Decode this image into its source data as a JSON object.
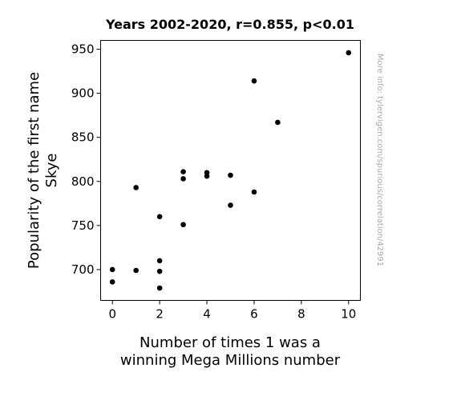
{
  "chart_data": {
    "type": "scatter",
    "title": "Years 2002-2020, r=0.855, p<0.01",
    "xlabel": [
      "Number of times 1 was a",
      "winning Mega Millions number"
    ],
    "ylabel": [
      "Popularity of the first name",
      "Skye"
    ],
    "xlim": [
      -0.5,
      10.5
    ],
    "ylim": [
      665,
      960
    ],
    "xticks": [
      0,
      2,
      4,
      6,
      8,
      10
    ],
    "yticks": [
      700,
      750,
      800,
      850,
      900,
      950
    ],
    "grid": false,
    "point_color": "#000000",
    "points": [
      {
        "x": 0,
        "y": 700
      },
      {
        "x": 0,
        "y": 686
      },
      {
        "x": 1,
        "y": 793
      },
      {
        "x": 1,
        "y": 699
      },
      {
        "x": 2,
        "y": 760
      },
      {
        "x": 2,
        "y": 710
      },
      {
        "x": 2,
        "y": 698
      },
      {
        "x": 2,
        "y": 679
      },
      {
        "x": 3,
        "y": 811
      },
      {
        "x": 3,
        "y": 803
      },
      {
        "x": 3,
        "y": 751
      },
      {
        "x": 4,
        "y": 810
      },
      {
        "x": 4,
        "y": 806
      },
      {
        "x": 5,
        "y": 807
      },
      {
        "x": 5,
        "y": 773
      },
      {
        "x": 6,
        "y": 914
      },
      {
        "x": 6,
        "y": 788
      },
      {
        "x": 7,
        "y": 867
      },
      {
        "x": 10,
        "y": 946
      }
    ]
  },
  "watermark": "More info: tylervigen.com/spurious/correlation/42991"
}
